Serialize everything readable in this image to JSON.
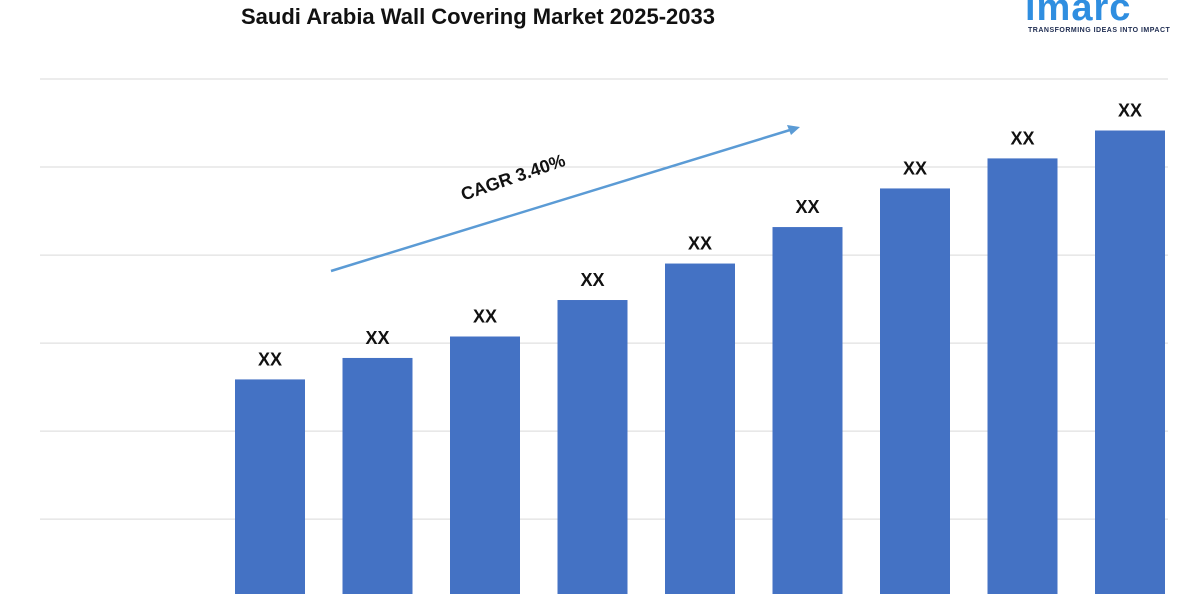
{
  "title": "Saudi Arabia Wall Covering Market 2025-2033",
  "logo": {
    "wordmark": "imarc",
    "tagline": "TRANSFORMING IDEAS INTO IMPACT"
  },
  "colors": {
    "bar": "#4472c4",
    "arrow": "#5b9bd5",
    "grid": "#d9d9d9",
    "logo": "#2f8ee0"
  },
  "chart_data": {
    "type": "bar",
    "categories": [
      "",
      "",
      "",
      "",
      "",
      "",
      "",
      "",
      ""
    ],
    "values": [
      100,
      110,
      120,
      137,
      154,
      171,
      189,
      203,
      216
    ],
    "data_labels": [
      "XX",
      "XX",
      "XX",
      "XX",
      "XX",
      "XX",
      "XX",
      "XX",
      "XX"
    ],
    "ylim": [
      0,
      240
    ],
    "grid": true,
    "annotation": "CAGR 3.40%"
  }
}
